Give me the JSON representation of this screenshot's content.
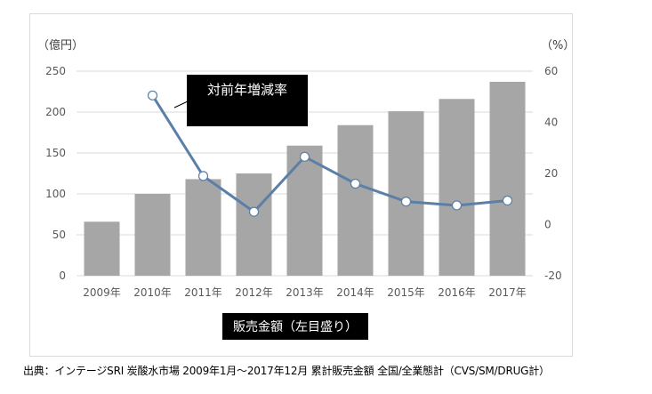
{
  "chart_data": {
    "type": "bar+line",
    "categories": [
      "2009年",
      "2010年",
      "2011年",
      "2012年",
      "2013年",
      "2014年",
      "2015年",
      "2016年",
      "2017年"
    ],
    "series": [
      {
        "name": "販売金額（左目盛り）",
        "type": "bar",
        "axis": "left",
        "color": "#a6a6a6",
        "values": [
          66,
          100,
          118,
          125,
          159,
          184,
          201,
          216,
          237
        ]
      },
      {
        "name": "対前年増減率",
        "type": "line",
        "axis": "right",
        "color": "#5b7fa6",
        "values": [
          null,
          50.5,
          19,
          5,
          26.5,
          16,
          9,
          7.5,
          9.4
        ]
      }
    ],
    "left_axis": {
      "label": "（億円）",
      "ticks": [
        0,
        50,
        100,
        150,
        200,
        250
      ],
      "range": [
        0,
        250
      ]
    },
    "right_axis": {
      "label": "（%）",
      "ticks": [
        -20,
        0,
        20,
        40,
        60
      ],
      "range": [
        -20,
        60
      ]
    },
    "grid": true,
    "annotations": {
      "line_label": "対前年増減率",
      "bar_label": "販売金額（左目盛り）"
    }
  },
  "source_note": "出典：インテージSRI 炭酸水市場 2009年1月～2017年12月  累計販売金額 全国/全業態計（CVS/SM/DRUG計）"
}
